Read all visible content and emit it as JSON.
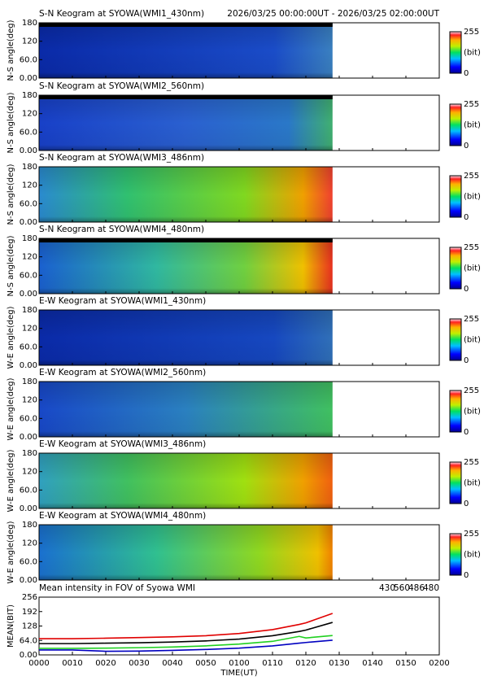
{
  "chart_data": [
    {
      "type": "keogram",
      "title": "S-N Keogram at SYOWA(WMI1_430nm)",
      "subtitle": "2026/03/25 00:00:00UT - 2026/03/25 02:00:00UT",
      "ylabel": "N-S angle(deg)",
      "ylim": [
        0,
        180
      ],
      "yticks": [
        {
          "value": 0,
          "label": "0.00"
        },
        {
          "value": 60,
          "label": "60.0"
        },
        120,
        180
      ],
      "clim": [
        0,
        255
      ],
      "cticks": [
        0,
        255
      ],
      "clabel": "(bit)"
    },
    {
      "type": "keogram",
      "title": "S-N Keogram at SYOWA(WMI2_560nm)",
      "ylabel": "N-S angle(deg)",
      "ylim": [
        0,
        180
      ],
      "yticks": [
        {
          "value": 0,
          "label": "0.00"
        },
        {
          "value": 60,
          "label": "60.0"
        },
        120,
        180
      ],
      "clim": [
        0,
        255
      ],
      "cticks": [
        0,
        255
      ],
      "clabel": "(bit)"
    },
    {
      "type": "keogram",
      "title": "S-N Keogram at SYOWA(WMI3_486nm)",
      "ylabel": "N-S angle(deg)",
      "ylim": [
        0,
        180
      ],
      "yticks": [
        {
          "value": 0,
          "label": "0.00"
        },
        {
          "value": 60,
          "label": "60.0"
        },
        120,
        180
      ],
      "clim": [
        0,
        255
      ],
      "cticks": [
        0,
        255
      ],
      "clabel": "(bit)"
    },
    {
      "type": "keogram",
      "title": "S-N Keogram at SYOWA(WMI4_480nm)",
      "ylabel": "N-S angle(deg)",
      "ylim": [
        0,
        180
      ],
      "yticks": [
        {
          "value": 0,
          "label": "0.00"
        },
        {
          "value": 60,
          "label": "60.0"
        },
        120,
        180
      ],
      "clim": [
        0,
        255
      ],
      "cticks": [
        0,
        255
      ],
      "clabel": "(bit)"
    },
    {
      "type": "keogram",
      "title": "E-W Keogram at SYOWA(WMI1_430nm)",
      "ylabel": "W-E angle(deg)",
      "ylim": [
        0,
        180
      ],
      "yticks": [
        {
          "value": 0,
          "label": "0.00"
        },
        {
          "value": 60,
          "label": "60.0"
        },
        120,
        180
      ],
      "clim": [
        0,
        255
      ],
      "cticks": [
        0,
        255
      ],
      "clabel": "(bit)"
    },
    {
      "type": "keogram",
      "title": "E-W Keogram at SYOWA(WMI2_560nm)",
      "ylabel": "W-E angle(deg)",
      "ylim": [
        0,
        180
      ],
      "yticks": [
        {
          "value": 0,
          "label": "0.00"
        },
        {
          "value": 60,
          "label": "60.0"
        },
        120,
        180
      ],
      "clim": [
        0,
        255
      ],
      "cticks": [
        0,
        255
      ],
      "clabel": "(bit)"
    },
    {
      "type": "keogram",
      "title": "E-W Keogram at SYOWA(WMI3_486nm)",
      "ylabel": "W-E angle(deg)",
      "ylim": [
        0,
        180
      ],
      "yticks": [
        {
          "value": 0,
          "label": "0.00"
        },
        {
          "value": 60,
          "label": "60.0"
        },
        120,
        180
      ],
      "clim": [
        0,
        255
      ],
      "cticks": [
        0,
        255
      ],
      "clabel": "(bit)"
    },
    {
      "type": "keogram",
      "title": "E-W Keogram at SYOWA(WMI4_480nm)",
      "ylabel": "W-E angle(deg)",
      "ylim": [
        0,
        180
      ],
      "yticks": [
        {
          "value": 0,
          "label": "0.00"
        },
        {
          "value": 60,
          "label": "60.0"
        },
        120,
        180
      ],
      "clim": [
        0,
        255
      ],
      "cticks": [
        0,
        255
      ],
      "clabel": "(bit)"
    },
    {
      "type": "line",
      "title": "Mean intensity in FOV of Syowa WMI",
      "xlabel": "TIME(UT)",
      "ylabel": "MEAN(BIT)",
      "x": [
        0,
        10,
        20,
        30,
        40,
        50,
        60,
        70,
        78,
        80,
        88
      ],
      "series": [
        {
          "name": "430",
          "color": "#0000c0",
          "values": [
            22,
            22,
            16,
            17,
            20,
            24,
            30,
            40,
            52,
            55,
            65
          ]
        },
        {
          "name": "560",
          "color": "#20d020",
          "values": [
            29,
            29,
            30,
            32,
            35,
            40,
            48,
            60,
            82,
            75,
            86
          ]
        },
        {
          "name": "486",
          "color": "#e00000",
          "values": [
            72,
            72,
            74,
            77,
            80,
            85,
            95,
            112,
            135,
            142,
            184
          ]
        },
        {
          "name": "480",
          "color": "#000000",
          "values": [
            50,
            50,
            52,
            54,
            57,
            62,
            70,
            85,
            104,
            110,
            144
          ]
        }
      ],
      "xlim": [
        0,
        120
      ],
      "xticks": [
        {
          "value": 0,
          "label": "0000"
        },
        {
          "value": 10,
          "label": "0010"
        },
        {
          "value": 20,
          "label": "0020"
        },
        {
          "value": 30,
          "label": "0030"
        },
        {
          "value": 40,
          "label": "0040"
        },
        {
          "value": 50,
          "label": "0050"
        },
        {
          "value": 60,
          "label": "0100"
        },
        {
          "value": 70,
          "label": "0110"
        },
        {
          "value": 80,
          "label": "0120"
        },
        {
          "value": 90,
          "label": "0130"
        },
        {
          "value": 100,
          "label": "0140"
        },
        {
          "value": 110,
          "label": "0150"
        },
        {
          "value": 120,
          "label": "0200"
        }
      ],
      "ylim": [
        0,
        256
      ],
      "yticks": [
        {
          "value": 0,
          "label": "0.00"
        },
        {
          "value": 64,
          "label": "64.0"
        },
        128,
        192,
        256
      ]
    }
  ]
}
